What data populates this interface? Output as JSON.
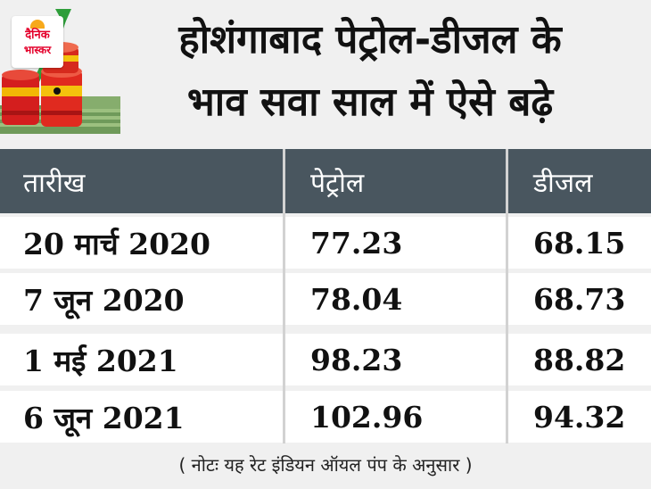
{
  "logo": {
    "line1": "दैनिक",
    "line2": "भास्कर"
  },
  "title": {
    "line1": "होशंगाबाद पेट्रोल-डीजल के",
    "line2": "भाव सवा साल में ऐसे बढ़े"
  },
  "table": {
    "headers": [
      "तारीख",
      "पेट्रोल",
      "डीजल"
    ],
    "rows": [
      [
        "20 मार्च 2020",
        "77.23",
        "68.15"
      ],
      [
        "7 जून 2020",
        "78.04",
        "68.73"
      ],
      [
        "1 मई 2021",
        "98.23",
        "88.82"
      ],
      [
        "6 जून 2021",
        "102.96",
        "94.32"
      ]
    ]
  },
  "note": "( नोटः यह रेट इंडियन ऑयल पंप के अनुसार )",
  "colors": {
    "header_bg": "#49565f",
    "row_bg": "#ffffff",
    "page_bg": "#f0f0f0",
    "logo_red": "#e4002b",
    "logo_sun": "#f7a91b"
  },
  "icons": [
    "oil-barrel-icon",
    "money-stack-icon",
    "rising-arrow-icon"
  ]
}
